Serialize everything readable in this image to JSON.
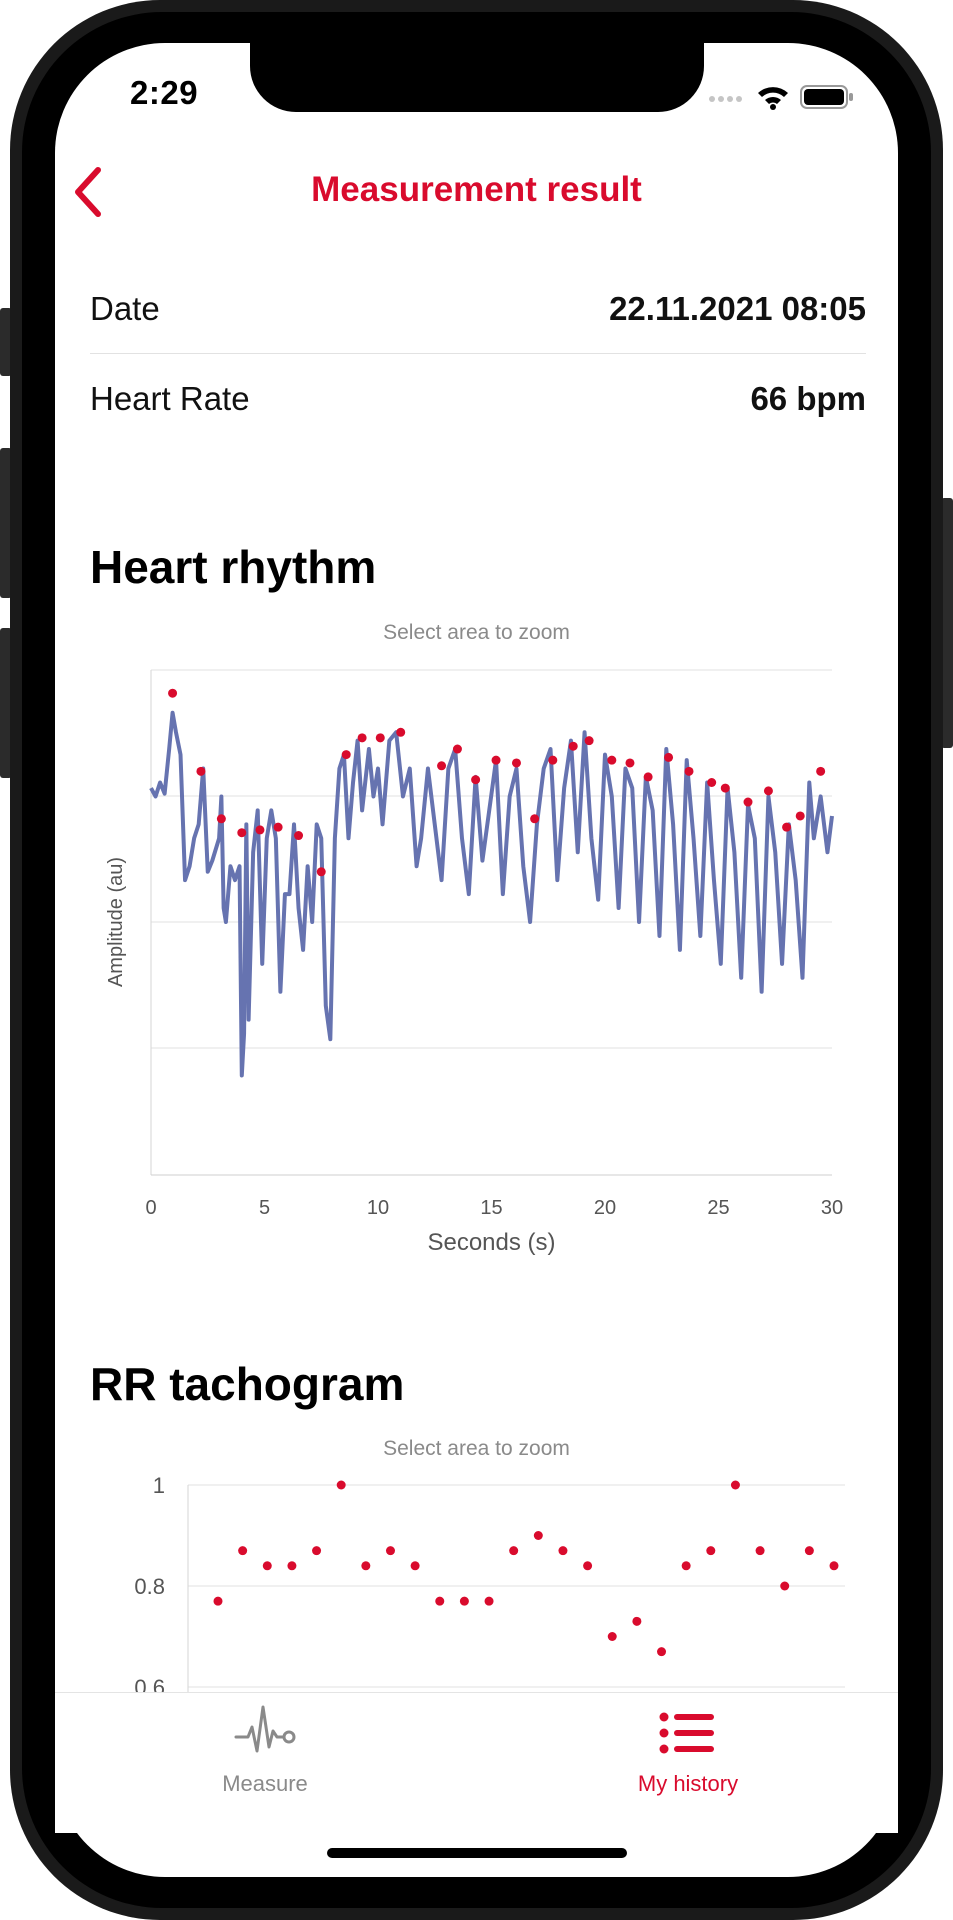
{
  "status_bar": {
    "time": "2:29"
  },
  "header": {
    "title": "Measurement result",
    "back_icon": "chevron-left-icon"
  },
  "details": [
    {
      "label": "Date",
      "value": "22.11.2021 08:05"
    },
    {
      "label": "Heart Rate",
      "value": "66 bpm"
    }
  ],
  "heart_rhythm": {
    "title": "Heart rhythm",
    "zoom_hint": "Select area to zoom"
  },
  "rr_tachogram": {
    "title": "RR tachogram",
    "zoom_hint": "Select area to zoom"
  },
  "tab_bar": {
    "items": [
      {
        "label": "Measure",
        "icon": "ecg-pulse-icon",
        "active": false
      },
      {
        "label": "My history",
        "icon": "list-icon",
        "active": true
      }
    ]
  },
  "colors": {
    "accent": "#d90b2d",
    "series": "#6673b0",
    "inactive": "#8a8a8a"
  },
  "chart_data": [
    {
      "type": "line",
      "xlabel": "Seconds (s)",
      "ylabel": "Amplitude (au)",
      "xlim": [
        0,
        30
      ],
      "xticks": [
        0,
        5,
        10,
        15,
        20,
        25,
        30
      ],
      "grid": true,
      "series": [
        {
          "points": [
            [
              0,
              0.48
            ],
            [
              0.2,
              0.45
            ],
            [
              0.4,
              0.5
            ],
            [
              0.6,
              0.46
            ],
            [
              0.8,
              0.62
            ],
            [
              0.95,
              0.75
            ],
            [
              1.1,
              0.68
            ],
            [
              1.3,
              0.6
            ],
            [
              1.5,
              0.15
            ],
            [
              1.7,
              0.2
            ],
            [
              1.9,
              0.3
            ],
            [
              2.1,
              0.35
            ],
            [
              2.3,
              0.55
            ],
            [
              2.5,
              0.18
            ],
            [
              2.7,
              0.22
            ],
            [
              3.0,
              0.3
            ],
            [
              3.1,
              0.45
            ],
            [
              3.2,
              0.05
            ],
            [
              3.3,
              0.0
            ],
            [
              3.5,
              0.2
            ],
            [
              3.7,
              0.15
            ],
            [
              3.9,
              0.2
            ],
            [
              4.0,
              -0.55
            ],
            [
              4.1,
              -0.4
            ],
            [
              4.2,
              0.35
            ],
            [
              4.3,
              -0.35
            ],
            [
              4.5,
              0.25
            ],
            [
              4.7,
              0.4
            ],
            [
              4.9,
              -0.15
            ],
            [
              5.1,
              0.3
            ],
            [
              5.3,
              0.4
            ],
            [
              5.5,
              0.3
            ],
            [
              5.7,
              -0.25
            ],
            [
              5.9,
              0.1
            ],
            [
              6.1,
              0.1
            ],
            [
              6.3,
              0.35
            ],
            [
              6.5,
              0.05
            ],
            [
              6.7,
              -0.1
            ],
            [
              6.9,
              0.2
            ],
            [
              7.1,
              0.0
            ],
            [
              7.3,
              0.35
            ],
            [
              7.5,
              0.3
            ],
            [
              7.7,
              -0.3
            ],
            [
              7.9,
              -0.42
            ],
            [
              8.1,
              0.3
            ],
            [
              8.3,
              0.55
            ],
            [
              8.5,
              0.6
            ],
            [
              8.7,
              0.3
            ],
            [
              8.9,
              0.5
            ],
            [
              9.1,
              0.65
            ],
            [
              9.3,
              0.4
            ],
            [
              9.6,
              0.62
            ],
            [
              9.8,
              0.45
            ],
            [
              10.0,
              0.55
            ],
            [
              10.2,
              0.35
            ],
            [
              10.5,
              0.65
            ],
            [
              10.8,
              0.68
            ],
            [
              11.1,
              0.45
            ],
            [
              11.4,
              0.55
            ],
            [
              11.7,
              0.2
            ],
            [
              11.9,
              0.3
            ],
            [
              12.2,
              0.55
            ],
            [
              12.5,
              0.35
            ],
            [
              12.8,
              0.15
            ],
            [
              13.1,
              0.55
            ],
            [
              13.4,
              0.62
            ],
            [
              13.7,
              0.3
            ],
            [
              14.0,
              0.1
            ],
            [
              14.3,
              0.52
            ],
            [
              14.6,
              0.22
            ],
            [
              14.9,
              0.4
            ],
            [
              15.2,
              0.58
            ],
            [
              15.5,
              0.1
            ],
            [
              15.8,
              0.45
            ],
            [
              16.1,
              0.55
            ],
            [
              16.4,
              0.2
            ],
            [
              16.7,
              0.0
            ],
            [
              17.0,
              0.35
            ],
            [
              17.3,
              0.55
            ],
            [
              17.6,
              0.62
            ],
            [
              17.9,
              0.15
            ],
            [
              18.2,
              0.48
            ],
            [
              18.5,
              0.65
            ],
            [
              18.8,
              0.25
            ],
            [
              19.1,
              0.68
            ],
            [
              19.4,
              0.3
            ],
            [
              19.7,
              0.08
            ],
            [
              20.0,
              0.6
            ],
            [
              20.3,
              0.45
            ],
            [
              20.6,
              0.05
            ],
            [
              20.9,
              0.55
            ],
            [
              21.2,
              0.48
            ],
            [
              21.5,
              0.0
            ],
            [
              21.8,
              0.52
            ],
            [
              22.1,
              0.4
            ],
            [
              22.4,
              -0.05
            ],
            [
              22.7,
              0.62
            ],
            [
              23.0,
              0.35
            ],
            [
              23.3,
              -0.1
            ],
            [
              23.6,
              0.58
            ],
            [
              23.9,
              0.3
            ],
            [
              24.2,
              -0.05
            ],
            [
              24.5,
              0.5
            ],
            [
              24.8,
              0.15
            ],
            [
              25.1,
              -0.15
            ],
            [
              25.4,
              0.48
            ],
            [
              25.7,
              0.25
            ],
            [
              26.0,
              -0.2
            ],
            [
              26.3,
              0.42
            ],
            [
              26.6,
              0.3
            ],
            [
              26.9,
              -0.25
            ],
            [
              27.2,
              0.45
            ],
            [
              27.5,
              0.25
            ],
            [
              27.8,
              -0.15
            ],
            [
              28.1,
              0.35
            ],
            [
              28.4,
              0.15
            ],
            [
              28.7,
              -0.2
            ],
            [
              29.0,
              0.5
            ],
            [
              29.2,
              0.3
            ],
            [
              29.5,
              0.45
            ],
            [
              29.8,
              0.25
            ],
            [
              30,
              0.38
            ]
          ]
        },
        {
          "name": "peaks",
          "points": [
            [
              0.95,
              0.82
            ],
            [
              2.2,
              0.54
            ],
            [
              3.1,
              0.37
            ],
            [
              4.0,
              0.32
            ],
            [
              4.8,
              0.33
            ],
            [
              5.6,
              0.34
            ],
            [
              6.5,
              0.31
            ],
            [
              7.5,
              0.18
            ],
            [
              8.6,
              0.6
            ],
            [
              9.3,
              0.66
            ],
            [
              10.1,
              0.66
            ],
            [
              11.0,
              0.68
            ],
            [
              12.8,
              0.56
            ],
            [
              13.5,
              0.62
            ],
            [
              14.3,
              0.51
            ],
            [
              15.2,
              0.58
            ],
            [
              16.1,
              0.57
            ],
            [
              16.9,
              0.37
            ],
            [
              17.7,
              0.58
            ],
            [
              18.6,
              0.63
            ],
            [
              19.3,
              0.65
            ],
            [
              20.3,
              0.58
            ],
            [
              21.1,
              0.57
            ],
            [
              21.9,
              0.52
            ],
            [
              22.8,
              0.59
            ],
            [
              23.7,
              0.54
            ],
            [
              24.7,
              0.5
            ],
            [
              25.3,
              0.48
            ],
            [
              26.3,
              0.43
            ],
            [
              27.2,
              0.47
            ],
            [
              28.0,
              0.34
            ],
            [
              28.6,
              0.38
            ],
            [
              29.5,
              0.54
            ]
          ]
        }
      ]
    },
    {
      "type": "scatter",
      "yticks": [
        1,
        0.8,
        0.6
      ],
      "ylim": [
        0.6,
        1
      ],
      "grid": true,
      "values": [
        0.77,
        0.87,
        0.84,
        0.84,
        0.87,
        1.0,
        0.84,
        0.87,
        0.84,
        0.77,
        0.77,
        0.77,
        0.87,
        0.9,
        0.87,
        0.84,
        0.7,
        0.73,
        0.67,
        0.84,
        0.87,
        1.0,
        0.87,
        0.8,
        0.87,
        0.84
      ]
    }
  ]
}
